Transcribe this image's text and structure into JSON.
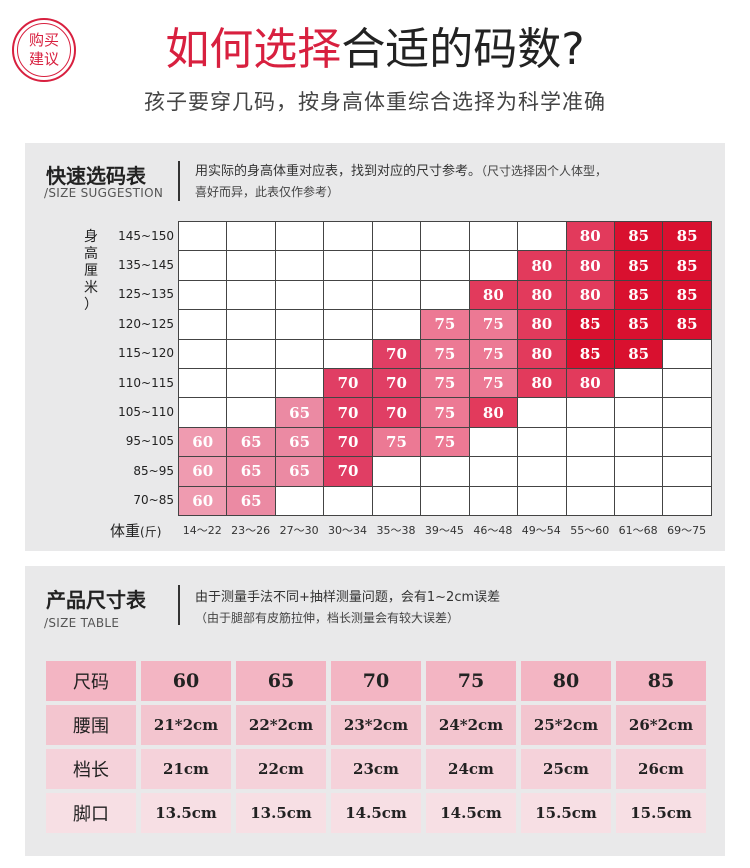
{
  "header": {
    "badge_line1": "购买",
    "badge_line2": "建议",
    "title_red": "如何选择",
    "title_dark": "合适的码数?",
    "subtitle": "孩子要穿几码，按身高体重综合选择为科学准确"
  },
  "suggestion": {
    "title": "快速选码表",
    "en": "/SIZE SUGGESTION",
    "note_line1": "用实际的身高体重对应表，找到对应的尺寸参考。",
    "note_line1_small": "（尺寸选择因个人体型，",
    "note_line2": "喜好而异，此表仅作参考）",
    "y_title": [
      "身",
      "高",
      "厘",
      "米",
      "）"
    ],
    "x_title": "体重",
    "x_unit": "(斤)",
    "heights": [
      "145~150",
      "135~145",
      "125~135",
      "120~125",
      "115~120",
      "110~115",
      "105~110",
      "95~105",
      "85~95",
      "70~85"
    ],
    "weights": [
      "14〜22",
      "23〜26",
      "27〜30",
      "30〜34",
      "35〜38",
      "39〜45",
      "46〜48",
      "49〜54",
      "55〜60",
      "61〜68",
      "69〜75"
    ],
    "grid": [
      [
        "",
        "",
        "",
        "",
        "",
        "",
        "",
        "",
        "80",
        "85",
        "85"
      ],
      [
        "",
        "",
        "",
        "",
        "",
        "",
        "",
        "80",
        "80",
        "85",
        "85"
      ],
      [
        "",
        "",
        "",
        "",
        "",
        "",
        "80",
        "80",
        "80",
        "85",
        "85"
      ],
      [
        "",
        "",
        "",
        "",
        "",
        "75",
        "75",
        "80",
        "85",
        "85",
        "85"
      ],
      [
        "",
        "",
        "",
        "",
        "70",
        "75",
        "75",
        "80",
        "85",
        "85",
        ""
      ],
      [
        "",
        "",
        "",
        "70",
        "70",
        "75",
        "75",
        "80",
        "80",
        "",
        ""
      ],
      [
        "",
        "",
        "65",
        "70",
        "70",
        "75",
        "80",
        "",
        "",
        "",
        ""
      ],
      [
        "60",
        "65",
        "65",
        "70",
        "75",
        "75",
        "",
        "",
        "",
        "",
        ""
      ],
      [
        "60",
        "65",
        "65",
        "70",
        "",
        "",
        "",
        "",
        "",
        "",
        ""
      ],
      [
        "60",
        "65",
        "",
        "",
        "",
        "",
        "",
        "",
        "",
        "",
        ""
      ]
    ]
  },
  "table": {
    "title": "产品尺寸表",
    "en": "/SIZE TABLE",
    "note_line1": "由于测量手法不同+抽样测量问题，会有1~2cm误差",
    "note_line2": "（由于腿部有皮筋拉伸，档长测量会有较大误差）",
    "header": [
      "尺码",
      "60",
      "65",
      "70",
      "75",
      "80",
      "85"
    ],
    "rows": [
      [
        "腰围",
        "21*2cm",
        "22*2cm",
        "23*2cm",
        "24*2cm",
        "25*2cm",
        "26*2cm"
      ],
      [
        "档长",
        "21cm",
        "22cm",
        "23cm",
        "24cm",
        "25cm",
        "26cm"
      ],
      [
        "脚口",
        "13.5cm",
        "13.5cm",
        "14.5cm",
        "14.5cm",
        "15.5cm",
        "15.5cm"
      ]
    ]
  }
}
